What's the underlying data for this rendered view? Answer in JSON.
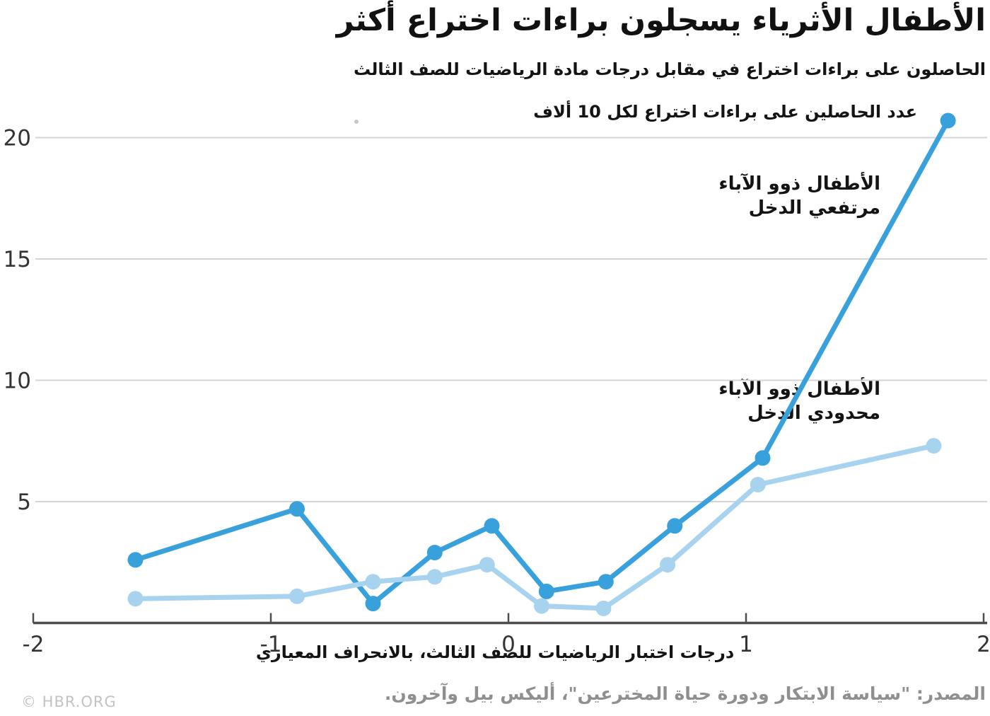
{
  "chart_data": {
    "type": "line",
    "title": "الأطفال الأثرياء يسجلون براءات اختراع أكثر",
    "subtitle": "الحاصلون على براءات اختراع في مقابل درجات مادة الرياضيات للصف الثالث",
    "y_axis_annotation": "عدد الحاصلين على براءات اختراع لكل 10 ألاف",
    "xlabel": "درجات اختبار الرياضيات للصف الثالث، بالانحراف المعياري",
    "ylabel": "",
    "xlim": [
      -2,
      2
    ],
    "ylim": [
      0,
      21.5
    ],
    "xticks": [
      "-2",
      "-1",
      "0",
      "1",
      "2"
    ],
    "yticks": [
      5,
      10,
      15,
      20
    ],
    "grid": "horizontal-only",
    "legend_position": "annotations-right",
    "series": [
      {
        "id": "high-income",
        "name": "الأطفال ذوو الآباء مرتفعي الدخل",
        "label_lines": [
          "الأطفال ذوو الآباء",
          "مرتفعي الدخل"
        ],
        "color": "#38a1dc",
        "points": [
          [
            -1.57,
            2.6
          ],
          [
            -0.89,
            4.7
          ],
          [
            -0.57,
            0.8
          ],
          [
            -0.31,
            2.9
          ],
          [
            -0.07,
            4.0
          ],
          [
            0.16,
            1.3
          ],
          [
            0.41,
            1.7
          ],
          [
            0.7,
            4.0
          ],
          [
            1.07,
            6.8
          ],
          [
            1.85,
            20.7
          ]
        ]
      },
      {
        "id": "low-income",
        "name": "الأطفال ذوو الآباء محدودي الدخل",
        "label_lines": [
          "الأطفال ذوو الآباء",
          "محدودي الدخل"
        ],
        "color": "#a7d3ef",
        "points": [
          [
            -1.57,
            1.0
          ],
          [
            -0.89,
            1.1
          ],
          [
            -0.57,
            1.7
          ],
          [
            -0.31,
            1.9
          ],
          [
            -0.09,
            2.4
          ],
          [
            0.14,
            0.7
          ],
          [
            0.4,
            0.6
          ],
          [
            0.67,
            2.4
          ],
          [
            1.05,
            5.7
          ],
          [
            1.79,
            7.3
          ]
        ]
      }
    ],
    "colors": {
      "grid": "#d4d4d4",
      "axis": "#4d4d4d",
      "tick_label": "#333333"
    }
  },
  "footer": {
    "source": "المصدر: \"سياسة الابتكار ودورة حياة المخترعين\"، أليكس بيل وآخرون.",
    "credit": "© HBR.ORG"
  }
}
